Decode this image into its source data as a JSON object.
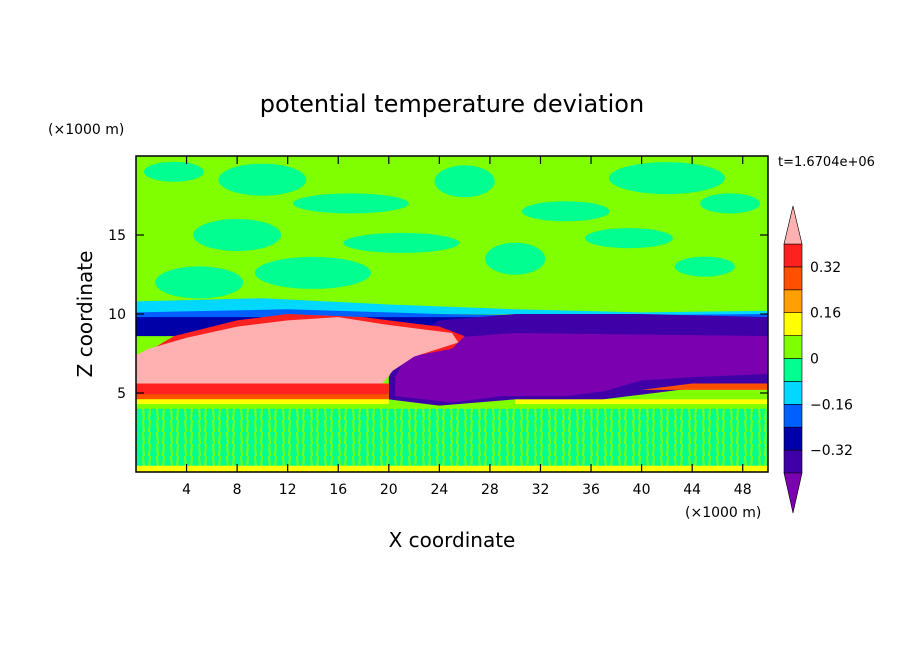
{
  "chart_data": {
    "type": "heatmap",
    "title": "potential temperature deviation",
    "time_label": "t=1.6704e+06",
    "xlabel": "X coordinate",
    "ylabel": "Z coordinate",
    "x_unit": "(×1000 m)",
    "y_unit": "(×1000 m)",
    "xlim": [
      0,
      50
    ],
    "ylim": [
      0,
      20
    ],
    "x_ticks": [
      4,
      8,
      12,
      16,
      20,
      24,
      28,
      32,
      36,
      40,
      44,
      48
    ],
    "y_ticks": [
      5,
      10,
      15
    ],
    "colorbar": {
      "levels": [
        -0.4,
        -0.32,
        -0.24,
        -0.16,
        -0.08,
        0,
        0.08,
        0.16,
        0.24,
        0.32,
        0.4
      ],
      "tick_values": [
        0.32,
        0.16,
        0,
        -0.16,
        -0.32
      ],
      "tick_labels": [
        "0.32",
        "0.16",
        "0",
        "−0.16",
        "−0.32"
      ],
      "colors": [
        "#7a00b0",
        "#3f00a8",
        "#0000a8",
        "#0060ff",
        "#00d8ff",
        "#00ff90",
        "#80ff00",
        "#ffff00",
        "#ffa000",
        "#ff5000",
        "#ff2020",
        "#ffb0b0"
      ],
      "extend": "both"
    },
    "regions": [
      {
        "name": "upper",
        "z_range": [
          10.5,
          20
        ],
        "value": 0.02
      },
      {
        "name": "warm_anomaly_left",
        "x_range": [
          0,
          26
        ],
        "z_range": [
          5.5,
          10
        ],
        "value": 0.5
      },
      {
        "name": "cold_anomaly_right",
        "x_range": [
          20,
          50
        ],
        "z_range": [
          4,
          10
        ],
        "value": -0.45
      },
      {
        "name": "cold_layer_top",
        "x_range": [
          0,
          50
        ],
        "z_range": [
          9,
          10
        ],
        "value": -0.3
      },
      {
        "name": "warm_band",
        "x_range": [
          0,
          20
        ],
        "z_range": [
          4.5,
          5.5
        ],
        "value": 0.3
      },
      {
        "name": "boundary_layer",
        "z_range": [
          0,
          4
        ],
        "value": 0.0
      }
    ]
  }
}
